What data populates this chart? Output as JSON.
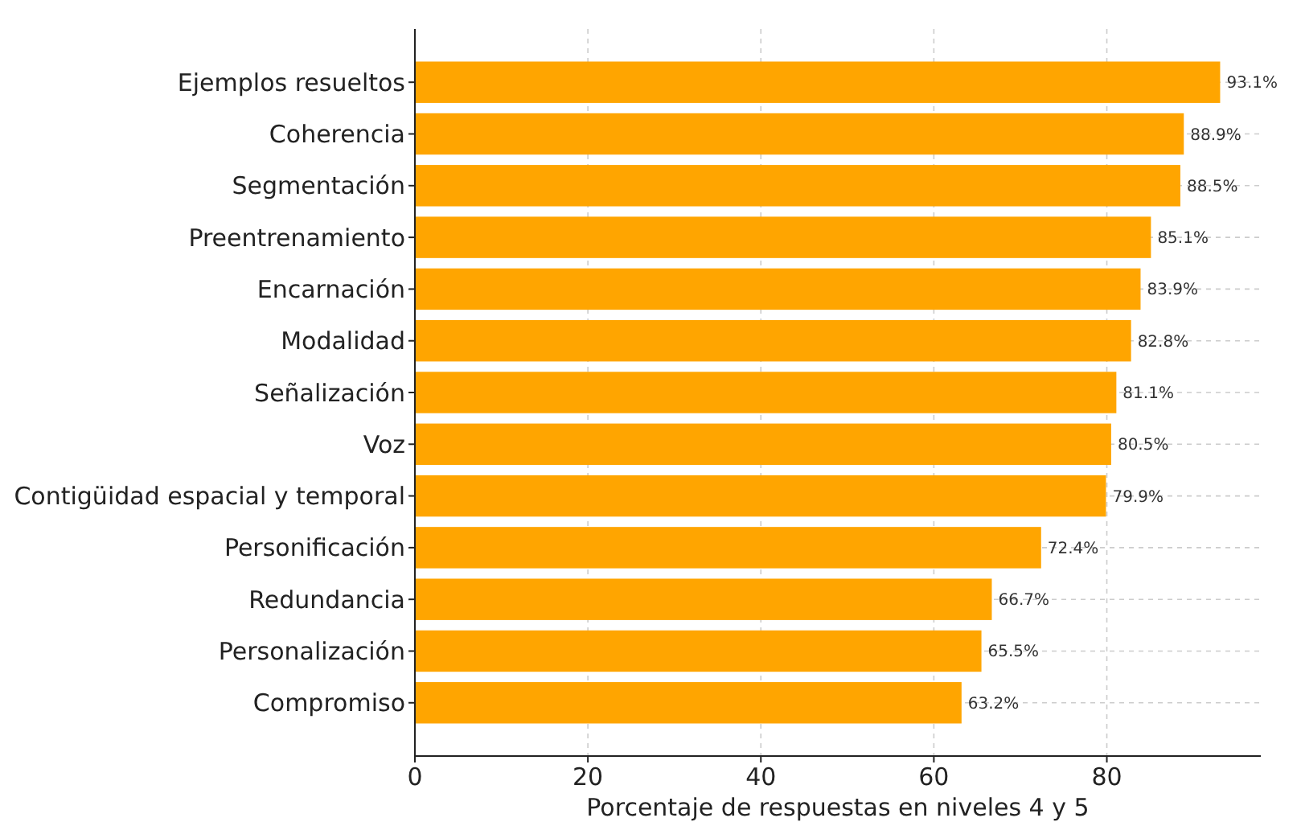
{
  "chart_data": {
    "type": "bar",
    "orientation": "horizontal",
    "xlabel": "Porcentaje de respuestas en niveles 4 y 5",
    "categories": [
      "Ejemplos resueltos",
      "Coherencia",
      "Segmentación",
      "Preentrenamiento",
      "Encarnación",
      "Modalidad",
      "Señalización",
      "Voz",
      "Contigüidad espacial y temporal",
      "Personificación",
      "Redundancia",
      "Personalización",
      "Compromiso"
    ],
    "values": [
      93.1,
      88.9,
      88.5,
      85.1,
      83.9,
      82.8,
      81.1,
      80.5,
      79.9,
      72.4,
      66.7,
      65.5,
      63.2
    ],
    "value_labels": [
      "93.1%",
      "88.9%",
      "88.5%",
      "85.1%",
      "83.9%",
      "82.8%",
      "81.1%",
      "80.5%",
      "79.9%",
      "72.4%",
      "66.7%",
      "65.5%",
      "63.2%"
    ],
    "color": "#ffa500",
    "xlim": [
      0,
      97.8
    ],
    "xticks": [
      0,
      20,
      40,
      60,
      80
    ],
    "grid": true
  }
}
